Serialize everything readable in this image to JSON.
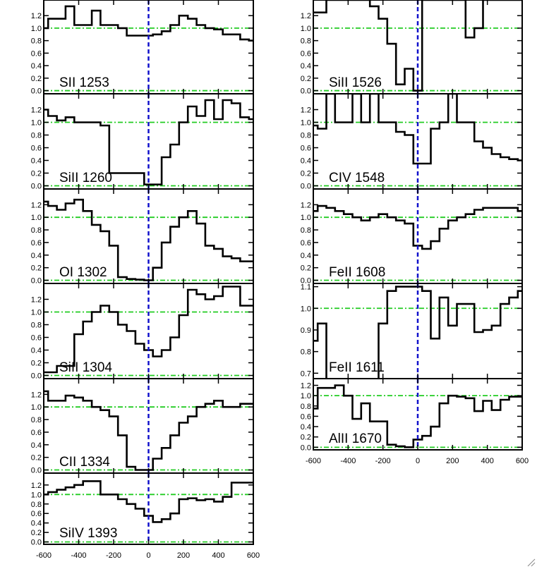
{
  "colors": {
    "spectrum": "#000000",
    "reference": "#22cc22",
    "zero_velocity": "#1111cc"
  },
  "chart_data": {
    "type": "line",
    "style": "step",
    "grid": false,
    "xlim": [
      -600,
      600
    ],
    "x_ticks": [
      "-600",
      "-400",
      "-200",
      "0",
      "200",
      "400",
      "600"
    ],
    "reference_lines": [
      0.0,
      1.0
    ],
    "vertical_marker_x": 0,
    "panels": [
      {
        "id": "sii-1253",
        "label": "SII 1253",
        "column": 0,
        "ylim": [
          -0.05,
          1.45
        ],
        "y_ticks": [
          0.0,
          0.2,
          0.4,
          0.6,
          0.8,
          1.0,
          1.2
        ],
        "y_tick_labels": [
          "0.0",
          "0.2",
          "0.4",
          "0.6",
          "0.8",
          "1.0",
          "1.2"
        ],
        "x": [
          -600,
          -550,
          -500,
          -450,
          -400,
          -350,
          -300,
          -250,
          -200,
          -150,
          -100,
          -50,
          0,
          50,
          100,
          150,
          200,
          250,
          300,
          350,
          400,
          450,
          500,
          550,
          600
        ],
        "y": [
          1.0,
          1.15,
          1.15,
          1.35,
          1.05,
          1.05,
          1.28,
          1.05,
          1.05,
          1.0,
          0.88,
          0.88,
          0.88,
          0.9,
          0.95,
          1.05,
          1.2,
          1.15,
          1.05,
          1.0,
          0.98,
          0.9,
          0.9,
          0.82,
          0.8
        ]
      },
      {
        "id": "siii-1260",
        "label": "SiII 1260",
        "column": 0,
        "ylim": [
          -0.05,
          1.45
        ],
        "y_ticks": [
          0.0,
          0.2,
          0.4,
          0.6,
          0.8,
          1.0,
          1.2
        ],
        "y_tick_labels": [
          "0.0",
          "0.2",
          "0.4",
          "0.6",
          "0.8",
          "1.0",
          "1.2"
        ],
        "x": [
          -600,
          -550,
          -500,
          -450,
          -400,
          -350,
          -300,
          -250,
          -200,
          -150,
          -100,
          -50,
          0,
          50,
          100,
          150,
          200,
          250,
          300,
          350,
          400,
          450,
          500,
          550,
          600
        ],
        "y": [
          1.2,
          1.1,
          1.03,
          1.08,
          1.0,
          1.0,
          1.0,
          0.95,
          0.2,
          0.2,
          0.2,
          0.2,
          0.02,
          0.02,
          0.45,
          0.65,
          1.0,
          1.25,
          1.1,
          1.35,
          1.05,
          1.35,
          1.3,
          1.08,
          1.05
        ]
      },
      {
        "id": "oi-1302",
        "label": "OI 1302",
        "column": 0,
        "ylim": [
          -0.05,
          1.45
        ],
        "y_ticks": [
          0.0,
          0.2,
          0.4,
          0.6,
          0.8,
          1.0,
          1.2
        ],
        "y_tick_labels": [
          "0.0",
          "0.2",
          "0.4",
          "0.6",
          "0.8",
          "1.0",
          "1.2"
        ],
        "x": [
          -600,
          -550,
          -500,
          -450,
          -400,
          -350,
          -300,
          -250,
          -200,
          -150,
          -100,
          -50,
          0,
          50,
          100,
          150,
          200,
          250,
          300,
          350,
          400,
          450,
          500,
          550,
          600
        ],
        "y": [
          1.25,
          1.18,
          1.12,
          1.22,
          1.28,
          1.1,
          0.88,
          0.78,
          0.55,
          0.05,
          0.02,
          0.01,
          0.0,
          0.2,
          0.6,
          0.85,
          1.0,
          1.1,
          0.9,
          0.55,
          0.5,
          0.38,
          0.35,
          0.3,
          0.3
        ]
      },
      {
        "id": "siii-1304",
        "label": "SiII 1304",
        "column": 0,
        "ylim": [
          -0.05,
          1.45
        ],
        "y_ticks": [
          0.0,
          0.2,
          0.4,
          0.6,
          0.8,
          1.0,
          1.2
        ],
        "y_tick_labels": [
          "0.0",
          "0.2",
          "0.4",
          "0.6",
          "0.8",
          "1.0",
          "1.2"
        ],
        "x": [
          -600,
          -550,
          -500,
          -450,
          -400,
          -350,
          -300,
          -250,
          -200,
          -150,
          -100,
          -50,
          0,
          50,
          100,
          150,
          200,
          250,
          300,
          350,
          400,
          450,
          500,
          550,
          600
        ],
        "y": [
          0.05,
          0.05,
          0.15,
          0.15,
          0.65,
          0.85,
          1.0,
          1.1,
          1.0,
          0.8,
          0.7,
          0.5,
          0.4,
          0.3,
          0.4,
          0.6,
          0.95,
          1.35,
          1.28,
          1.2,
          1.25,
          1.4,
          1.4,
          1.1,
          1.1
        ]
      },
      {
        "id": "cii-1334",
        "label": "CII 1334",
        "column": 0,
        "ylim": [
          -0.05,
          1.45
        ],
        "y_ticks": [
          0.0,
          0.2,
          0.4,
          0.6,
          0.8,
          1.0,
          1.2
        ],
        "y_tick_labels": [
          "0.0",
          "0.2",
          "0.4",
          "0.6",
          "0.8",
          "1.0",
          "1.2"
        ],
        "x": [
          -600,
          -550,
          -500,
          -450,
          -400,
          -350,
          -300,
          -250,
          -200,
          -150,
          -100,
          -50,
          0,
          50,
          100,
          150,
          200,
          250,
          300,
          350,
          400,
          450,
          500,
          550,
          600
        ],
        "y": [
          1.25,
          1.1,
          1.1,
          1.18,
          1.15,
          1.1,
          1.0,
          0.95,
          0.85,
          0.55,
          0.05,
          0.0,
          0.0,
          0.18,
          0.35,
          0.55,
          0.75,
          0.85,
          1.0,
          1.05,
          1.1,
          1.0,
          1.0,
          1.05,
          1.05
        ]
      },
      {
        "id": "siiv-1393",
        "label": "SiIV 1393",
        "column": 0,
        "ylim": [
          -0.05,
          1.45
        ],
        "y_ticks": [
          0.0,
          0.2,
          0.4,
          0.6,
          0.8,
          1.0,
          1.2
        ],
        "y_tick_labels": [
          "0.0",
          "0.2",
          "0.4",
          "0.6",
          "0.8",
          "1.0",
          "1.2"
        ],
        "x": [
          -600,
          -550,
          -500,
          -450,
          -400,
          -350,
          -300,
          -250,
          -200,
          -150,
          -100,
          -50,
          0,
          50,
          100,
          150,
          200,
          250,
          300,
          350,
          400,
          450,
          500,
          550,
          600
        ],
        "y": [
          1.0,
          1.05,
          1.1,
          1.15,
          1.2,
          1.28,
          1.28,
          1.0,
          1.0,
          0.9,
          0.8,
          0.7,
          0.55,
          0.42,
          0.48,
          0.6,
          0.9,
          0.92,
          0.88,
          0.9,
          0.85,
          0.95,
          1.25,
          1.25,
          1.25
        ]
      },
      {
        "id": "siii-1526",
        "label": "SiII 1526",
        "column": 1,
        "ylim": [
          -0.05,
          1.45
        ],
        "y_ticks": [
          0.0,
          0.2,
          0.4,
          0.6,
          0.8,
          1.0,
          1.2
        ],
        "y_tick_labels": [
          "0.0",
          "0.2",
          "0.4",
          "0.6",
          "0.8",
          "1.0",
          "1.2"
        ],
        "x": [
          -600,
          -550,
          -500,
          -450,
          -400,
          -350,
          -300,
          -250,
          -200,
          -150,
          -100,
          -50,
          0,
          50,
          100,
          150,
          200,
          250,
          300,
          350,
          400,
          450,
          500,
          550,
          600
        ],
        "y": [
          1.25,
          1.25,
          1.45,
          1.45,
          1.45,
          1.45,
          1.45,
          1.35,
          1.15,
          0.75,
          0.1,
          0.35,
          0.0,
          1.45,
          1.45,
          1.45,
          1.45,
          1.45,
          0.85,
          1.0,
          1.45,
          1.45,
          1.45,
          1.45,
          1.45
        ]
      },
      {
        "id": "civ-1548",
        "label": "CIV 1548",
        "column": 1,
        "ylim": [
          -0.05,
          1.45
        ],
        "y_ticks": [
          0.0,
          0.2,
          0.4,
          0.6,
          0.8,
          1.0,
          1.2
        ],
        "y_tick_labels": [
          "0.0",
          "0.2",
          "0.4",
          "0.6",
          "0.8",
          "1.0",
          "1.2"
        ],
        "x": [
          -600,
          -550,
          -500,
          -450,
          -400,
          -350,
          -300,
          -250,
          -200,
          -150,
          -100,
          -50,
          0,
          50,
          100,
          150,
          200,
          250,
          300,
          350,
          400,
          450,
          500,
          550,
          600
        ],
        "y": [
          0.95,
          0.9,
          1.45,
          1.0,
          1.0,
          1.45,
          1.0,
          1.45,
          1.0,
          1.0,
          0.85,
          0.8,
          0.35,
          0.35,
          0.9,
          1.0,
          1.45,
          1.0,
          1.0,
          0.7,
          0.6,
          0.5,
          0.45,
          0.42,
          0.4
        ]
      },
      {
        "id": "feii-1608",
        "label": "FeII 1608",
        "column": 1,
        "ylim": [
          -0.05,
          1.45
        ],
        "y_ticks": [
          0.0,
          0.2,
          0.4,
          0.6,
          0.8,
          1.0,
          1.2
        ],
        "y_tick_labels": [
          "0.0",
          "0.2",
          "0.4",
          "0.6",
          "0.8",
          "1.0",
          "1.2"
        ],
        "x": [
          -600,
          -550,
          -500,
          -450,
          -400,
          -350,
          -300,
          -250,
          -200,
          -150,
          -100,
          -50,
          0,
          50,
          100,
          150,
          200,
          250,
          300,
          350,
          400,
          450,
          500,
          550,
          600
        ],
        "y": [
          1.1,
          1.18,
          1.15,
          1.1,
          1.05,
          1.0,
          0.95,
          1.0,
          1.05,
          1.0,
          0.95,
          0.9,
          0.55,
          0.5,
          0.62,
          0.82,
          0.95,
          1.0,
          1.05,
          1.12,
          1.15,
          1.15,
          1.15,
          1.15,
          1.1
        ]
      },
      {
        "id": "feii-1611",
        "label": "FeII 1611",
        "column": 1,
        "ylim": [
          0.675,
          1.115
        ],
        "y_ticks": [
          0.7,
          0.8,
          0.9,
          1.0,
          1.1
        ],
        "y_tick_labels": [
          "0.7",
          "0.8",
          "0.9",
          "1.0",
          "1.1"
        ],
        "x": [
          -600,
          -550,
          -500,
          -450,
          -400,
          -350,
          -300,
          -250,
          -200,
          -150,
          -100,
          -50,
          0,
          50,
          100,
          150,
          200,
          250,
          300,
          350,
          400,
          450,
          500,
          550,
          600
        ],
        "y": [
          0.85,
          0.93,
          0.65,
          0.65,
          0.65,
          0.65,
          0.65,
          0.65,
          0.93,
          1.08,
          1.1,
          1.1,
          1.1,
          1.08,
          0.86,
          1.05,
          0.92,
          1.02,
          1.02,
          0.89,
          0.9,
          0.92,
          1.02,
          1.05,
          1.08
        ]
      },
      {
        "id": "alii-1670",
        "label": "AlII 1670",
        "column": 1,
        "ylim": [
          -0.05,
          1.33
        ],
        "y_ticks": [
          0.0,
          0.2,
          0.4,
          0.6,
          0.8,
          1.0,
          1.2
        ],
        "y_tick_labels": [
          "0.0",
          "0.2",
          "0.4",
          "0.6",
          "0.8",
          "1.0",
          "1.2"
        ],
        "x": [
          -600,
          -550,
          -500,
          -450,
          -400,
          -350,
          -300,
          -250,
          -200,
          -150,
          -100,
          -50,
          0,
          50,
          100,
          150,
          200,
          250,
          300,
          350,
          400,
          450,
          500,
          550,
          600
        ],
        "y": [
          0.75,
          1.15,
          1.15,
          1.2,
          1.0,
          0.55,
          0.85,
          0.5,
          0.5,
          0.05,
          0.02,
          0.0,
          0.15,
          0.22,
          0.4,
          0.85,
          1.0,
          0.98,
          0.95,
          0.7,
          0.9,
          0.72,
          0.92,
          0.98,
          0.98
        ]
      }
    ]
  }
}
